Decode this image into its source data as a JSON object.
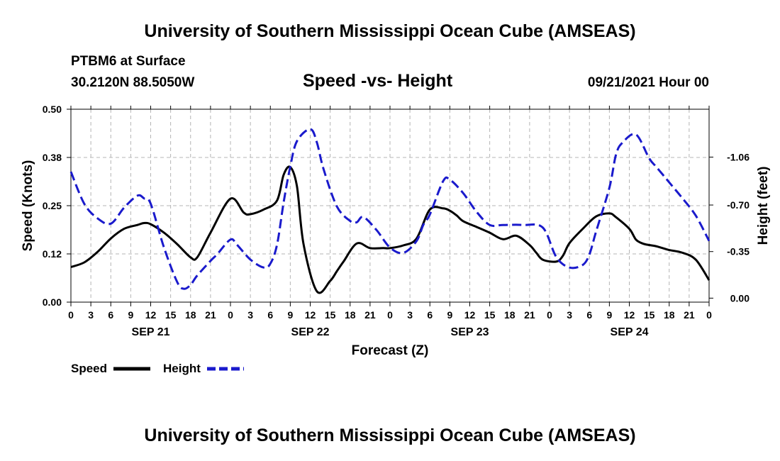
{
  "page": {
    "title_top": "University of Southern Mississippi Ocean Cube (AMSEAS)",
    "title_bottom": "University of Southern Mississippi Ocean Cube (AMSEAS)",
    "station": "PTBM6 at Surface",
    "coords": "30.2120N  88.5050W",
    "chart_title": "Speed -vs- Height",
    "datetime": "09/21/2021 Hour 00"
  },
  "colors": {
    "speed": "#000000",
    "height": "#1a1acc",
    "grid": "#b4b4b4"
  },
  "chart_data": {
    "type": "line",
    "title": "Speed -vs- Height",
    "xlabel": "Forecast (Z)",
    "ylabel_left": "Speed (Knots)",
    "ylabel_right": "Height (feet)",
    "x_range_hours": [
      0,
      96
    ],
    "x_tick_labels": [
      "0",
      "3",
      "6",
      "9",
      "12",
      "15",
      "18",
      "21",
      "0",
      "3",
      "6",
      "9",
      "12",
      "15",
      "18",
      "21",
      "0",
      "3",
      "6",
      "9",
      "12",
      "15",
      "18",
      "21",
      "0",
      "3",
      "6",
      "9",
      "12",
      "15",
      "18",
      "21",
      "0"
    ],
    "date_labels": [
      {
        "hour": 12,
        "label": "SEP 21"
      },
      {
        "hour": 36,
        "label": "SEP 22"
      },
      {
        "hour": 60,
        "label": "SEP 23"
      },
      {
        "hour": 84,
        "label": "SEP 24"
      }
    ],
    "y_left": {
      "range": [
        0,
        0.5
      ],
      "ticks": [
        0.0,
        0.125,
        0.25,
        0.375,
        0.5
      ],
      "tick_labels": [
        "0.00",
        "0.12",
        "0.25",
        "0.38",
        "0.50"
      ]
    },
    "y_right": {
      "range": [
        0.03,
        -1.42
      ],
      "ticks": [
        0.0,
        -0.35,
        -0.7,
        -1.06
      ],
      "tick_labels": [
        "0.00",
        "-0.35",
        "-0.70",
        "-1.06"
      ]
    },
    "legend": [
      {
        "label": "Speed",
        "style": "solid",
        "series": "speed"
      },
      {
        "label": "Height",
        "style": "dashed",
        "series": "height"
      }
    ],
    "series": [
      {
        "name": "Speed",
        "axis": "left",
        "style": "solid",
        "x": [
          0,
          2,
          4,
          6,
          8,
          10,
          11,
          12,
          14,
          16,
          18,
          19,
          21,
          24,
          26,
          27,
          29,
          31,
          32,
          33,
          34,
          35,
          37,
          39,
          40,
          41,
          43,
          45,
          47,
          48,
          50,
          52,
          54,
          56,
          57,
          58,
          59,
          61,
          63,
          65,
          67,
          69,
          70,
          71,
          73,
          74,
          75,
          77,
          79,
          81,
          82,
          84,
          85,
          86,
          87,
          88,
          89,
          90,
          92,
          94,
          96
        ],
        "values": [
          0.091,
          0.103,
          0.13,
          0.165,
          0.19,
          0.2,
          0.205,
          0.202,
          0.18,
          0.15,
          0.116,
          0.116,
          0.18,
          0.268,
          0.232,
          0.228,
          0.24,
          0.263,
          0.33,
          0.35,
          0.3,
          0.15,
          0.028,
          0.055,
          0.08,
          0.105,
          0.152,
          0.14,
          0.14,
          0.14,
          0.147,
          0.165,
          0.24,
          0.243,
          0.237,
          0.225,
          0.21,
          0.195,
          0.18,
          0.163,
          0.172,
          0.148,
          0.128,
          0.11,
          0.105,
          0.12,
          0.153,
          0.19,
          0.222,
          0.23,
          0.22,
          0.19,
          0.162,
          0.152,
          0.148,
          0.145,
          0.14,
          0.135,
          0.128,
          0.11,
          0.057
        ]
      },
      {
        "name": "Height",
        "axis": "right",
        "style": "dashed",
        "x": [
          0,
          2,
          4,
          6,
          8,
          10,
          11,
          12,
          14,
          16,
          17,
          18,
          19,
          21,
          22,
          24,
          25,
          27,
          29,
          30,
          31,
          32,
          33,
          34,
          36,
          37,
          38,
          40,
          42,
          43,
          44,
          46,
          48,
          50,
          52,
          53,
          54,
          56,
          57,
          59,
          61,
          63,
          65,
          68,
          71,
          73,
          75,
          77,
          78,
          79,
          81,
          82,
          83,
          85,
          87,
          88,
          89,
          90,
          92,
          94,
          96
        ],
        "values": [
          -0.95,
          -0.71,
          -0.6,
          -0.56,
          -0.68,
          -0.77,
          -0.75,
          -0.71,
          -0.38,
          -0.12,
          -0.07,
          -0.1,
          -0.17,
          -0.28,
          -0.33,
          -0.44,
          -0.4,
          -0.29,
          -0.23,
          -0.26,
          -0.4,
          -0.72,
          -0.99,
          -1.18,
          -1.27,
          -1.17,
          -0.97,
          -0.69,
          -0.58,
          -0.57,
          -0.61,
          -0.51,
          -0.38,
          -0.34,
          -0.43,
          -0.55,
          -0.63,
          -0.88,
          -0.89,
          -0.79,
          -0.65,
          -0.55,
          -0.55,
          -0.55,
          -0.53,
          -0.31,
          -0.23,
          -0.25,
          -0.33,
          -0.5,
          -0.83,
          -1.08,
          -1.17,
          -1.23,
          -1.05,
          -0.99,
          -0.93,
          -0.87,
          -0.75,
          -0.62,
          -0.43
        ]
      }
    ]
  }
}
